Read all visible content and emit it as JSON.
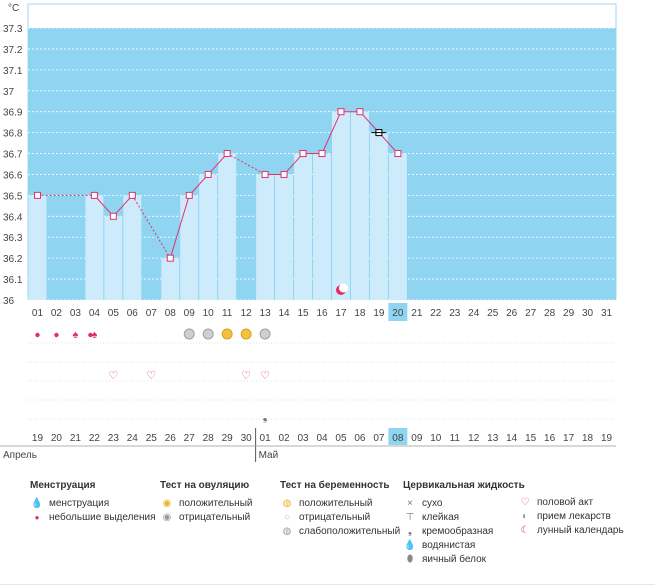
{
  "chart_data": {
    "type": "line",
    "unit": "°C",
    "ylim": [
      36,
      37.3
    ],
    "y_ticks": [
      "37.3",
      "37.2",
      "37.1",
      "37",
      "36.9",
      "36.8",
      "36.7",
      "36.6",
      "36.5",
      "36.4",
      "36.3",
      "36.2",
      "36.1",
      "36"
    ],
    "cycle_days": [
      "01",
      "02",
      "03",
      "04",
      "05",
      "06",
      "07",
      "08",
      "09",
      "10",
      "11",
      "12",
      "13",
      "14",
      "15",
      "16",
      "17",
      "18",
      "19",
      "20",
      "21",
      "22",
      "23",
      "24",
      "25",
      "26",
      "27",
      "28",
      "29",
      "30",
      "31"
    ],
    "temperatures": [
      36.5,
      null,
      null,
      36.5,
      36.4,
      36.5,
      null,
      36.2,
      36.5,
      36.6,
      36.7,
      null,
      36.6,
      36.6,
      36.7,
      36.7,
      36.9,
      36.9,
      36.8,
      36.7,
      null,
      null,
      null,
      null,
      null,
      null,
      null,
      null,
      null,
      null,
      null
    ],
    "dotted_links": [
      [
        1,
        4
      ],
      [
        6,
        8
      ],
      [
        11,
        13
      ]
    ],
    "current_day": "20",
    "selected_day": "19",
    "dates": [
      "19",
      "20",
      "21",
      "22",
      "23",
      "24",
      "25",
      "26",
      "27",
      "28",
      "29",
      "30",
      "01",
      "02",
      "03",
      "04",
      "05",
      "06",
      "07",
      "08",
      "09",
      "10",
      "11",
      "12",
      "13",
      "14",
      "15",
      "16",
      "17",
      "18",
      "19"
    ],
    "red_dates": [
      "19",
      "20",
      "26",
      "27",
      "03",
      "04",
      "11",
      "17",
      "18"
    ],
    "months": [
      {
        "label": "Апрель",
        "start_index": 0
      },
      {
        "label": "Май",
        "start_index": 12
      }
    ],
    "lunar_day": "17",
    "markers": {
      "menstruation": [
        "03",
        "04"
      ],
      "light_spotting": [
        "01",
        "02",
        "04"
      ],
      "ovulation_positive": [
        "11",
        "12"
      ],
      "ovulation_negative": [
        "09",
        "10",
        "13"
      ],
      "intercourse": [
        "05",
        "07",
        "12",
        "13"
      ],
      "cervical_creamy": [
        "13"
      ]
    },
    "colors": {
      "bar": "#cdebfb",
      "background": "#8fd5f2",
      "line": "#e03070",
      "today": "#8fd5f2",
      "holiday": "#d0103a"
    }
  },
  "legend": {
    "menstruation": {
      "title": "Менструация",
      "items": [
        "менструация",
        "небольшие выделения"
      ]
    },
    "ovulation_test": {
      "title": "Тест на овуляцию",
      "items": [
        "положительный",
        "отрицательный"
      ]
    },
    "pregnancy_test": {
      "title": "Тест на беременность",
      "items": [
        "положительный",
        "отрицательный",
        "слабоположительный"
      ]
    },
    "cervical": {
      "title": "Цервикальная жидкость",
      "items": [
        "сухо",
        "клейкая",
        "кремообразная",
        "водянистая",
        "яичный белок"
      ]
    },
    "other": {
      "items": [
        "половой акт",
        "прием лекарств",
        "лунный календарь"
      ]
    }
  }
}
